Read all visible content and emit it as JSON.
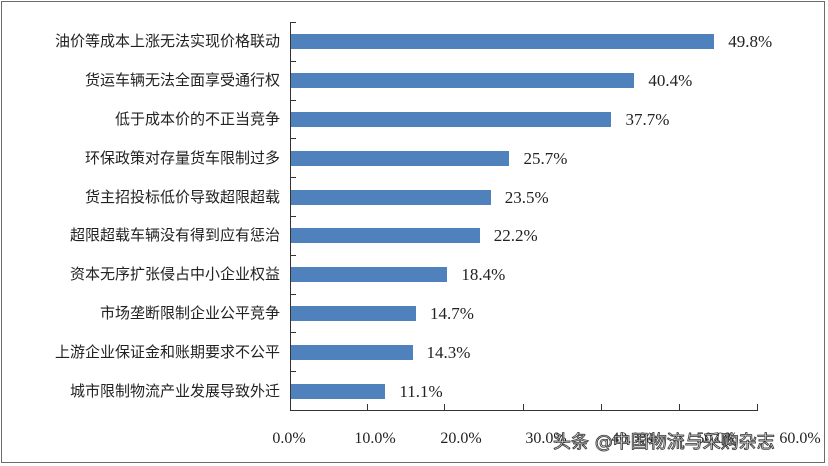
{
  "chart_data": {
    "type": "bar",
    "orientation": "horizontal",
    "title": "",
    "xlabel": "",
    "ylabel": "",
    "xlim": [
      0,
      60
    ],
    "grid": false,
    "legend": null,
    "bar_color": "#4f81bd",
    "categories": [
      "油价等成本上涨无法实现价格联动",
      "货运车辆无法全面享受通行权",
      "低于成本价的不正当竞争",
      "环保政策对存量货车限制过多",
      "货主招投标低价导致超限超载",
      "超限超载车辆没有得到应有惩治",
      "资本无序扩张侵占中小企业权益",
      "市场垄断限制企业公平竞争",
      "上游企业保证金和账期要求不公平",
      "城市限制物流产业发展导致外迁"
    ],
    "values": [
      49.8,
      40.4,
      37.7,
      25.7,
      23.5,
      22.2,
      18.4,
      14.7,
      14.3,
      11.1
    ],
    "value_labels": [
      "49.8%",
      "40.4%",
      "37.7%",
      "25.7%",
      "23.5%",
      "22.2%",
      "18.4%",
      "14.7%",
      "14.3%",
      "11.1%"
    ],
    "x_tick_labels": [
      "0.0%",
      "10.0%",
      "20.0%",
      "30.0%",
      "40.0%",
      "50.0%",
      "60.0%"
    ]
  },
  "watermark": "头条 @中国物流与采购杂志"
}
